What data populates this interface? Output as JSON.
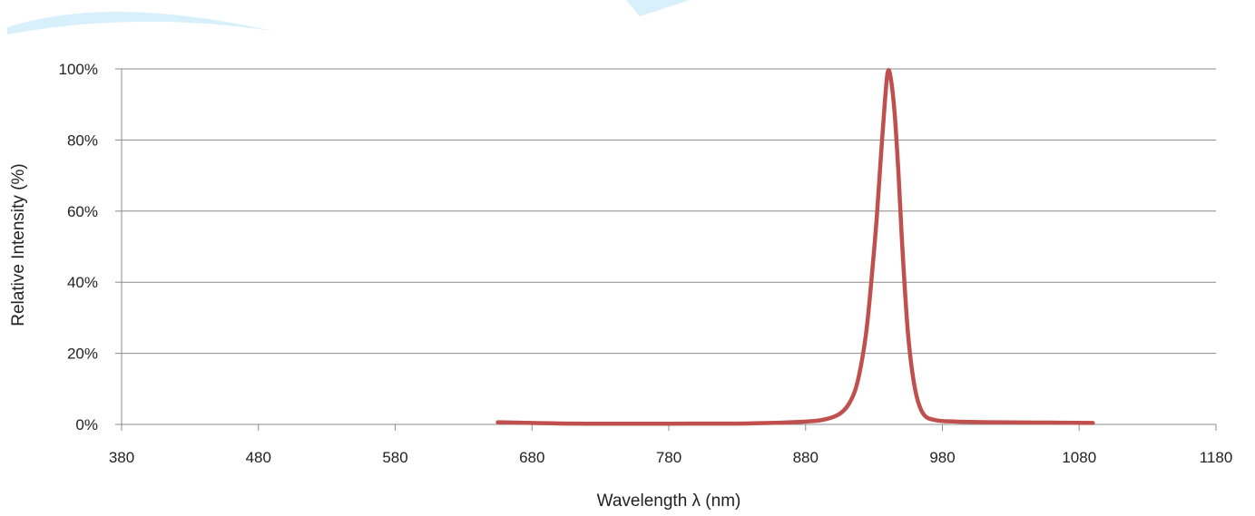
{
  "chart_data": {
    "type": "line",
    "title": "",
    "xlabel": "Wavelength λ (nm)",
    "ylabel": "Relative  Intensity (%)",
    "xlim": [
      380,
      1180
    ],
    "ylim": [
      0,
      100
    ],
    "x_ticks": [
      380,
      480,
      580,
      680,
      780,
      880,
      980,
      1080,
      1180
    ],
    "x_tick_labels": [
      "380",
      "480",
      "580",
      "680",
      "780",
      "880",
      "980",
      "1080",
      "1180"
    ],
    "y_ticks": [
      0,
      20,
      40,
      60,
      80,
      100
    ],
    "y_tick_labels": [
      "0%",
      "20%",
      "40%",
      "60%",
      "80%",
      "100%"
    ],
    "grid": "horizontal",
    "legend": "none",
    "series": [
      {
        "color": "#c0504d",
        "x": [
          655,
          680,
          720,
          780,
          840,
          880,
          895,
          905,
          912,
          918,
          924,
          928,
          932,
          935,
          938,
          940,
          942,
          945,
          948,
          951,
          955,
          960,
          966,
          975,
          990,
          1020,
          1060,
          1090
        ],
        "y": [
          0.6,
          0.4,
          0.2,
          0.2,
          0.3,
          0.8,
          1.5,
          3,
          6,
          12,
          25,
          40,
          58,
          75,
          91,
          99,
          98,
          88,
          70,
          48,
          25,
          10,
          3,
          1.2,
          0.8,
          0.6,
          0.5,
          0.4
        ]
      }
    ]
  },
  "colors": {
    "series": "#c0504d",
    "grid": "#8c8c8c",
    "decor": "#d8f0fb"
  }
}
